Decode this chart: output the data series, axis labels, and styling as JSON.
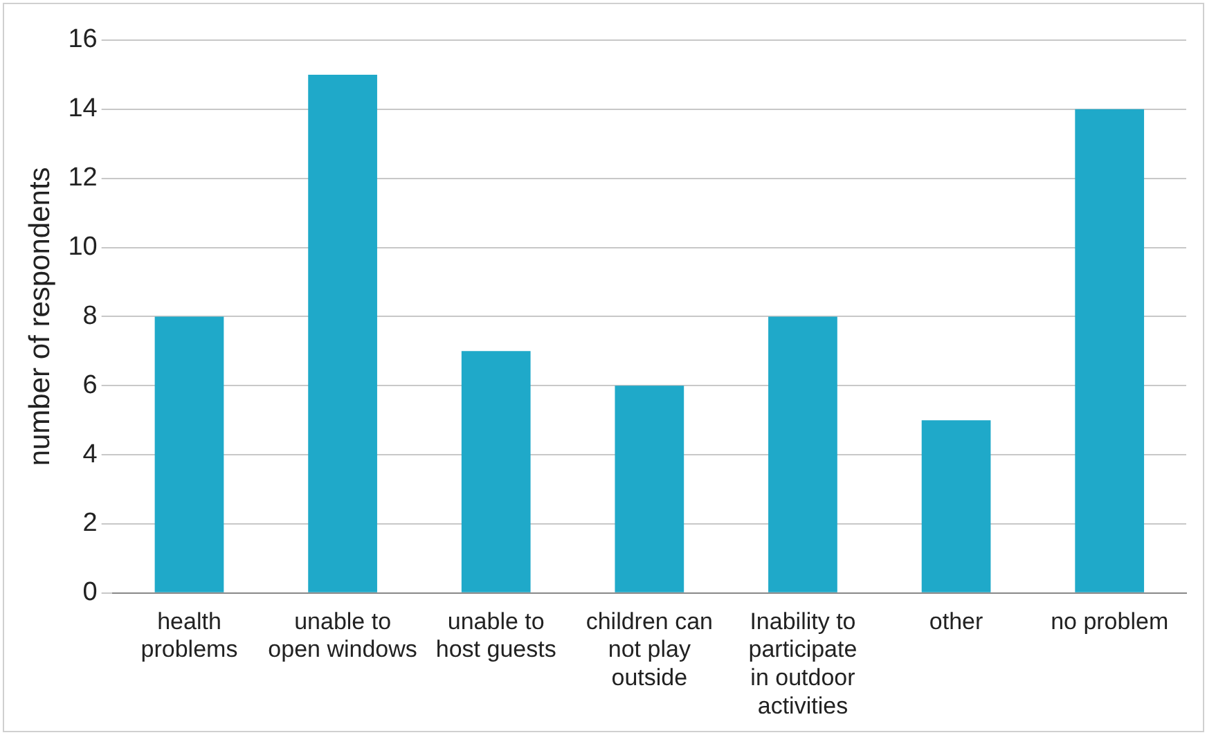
{
  "chart_data": {
    "type": "bar",
    "ylabel": "number of respondents",
    "categories": [
      "health problems",
      "unable to open windows",
      "unable to host guests",
      "children can not play outside",
      "Inability to participate in outdoor activities",
      "other",
      "no problem"
    ],
    "values": [
      8,
      15,
      7,
      6,
      8,
      5,
      14
    ],
    "color": "#1fa9c9",
    "ylim": [
      0,
      16
    ],
    "yticks": [
      0,
      2,
      4,
      6,
      8,
      10,
      12,
      14,
      16
    ],
    "grid": "y",
    "legend": false
  }
}
